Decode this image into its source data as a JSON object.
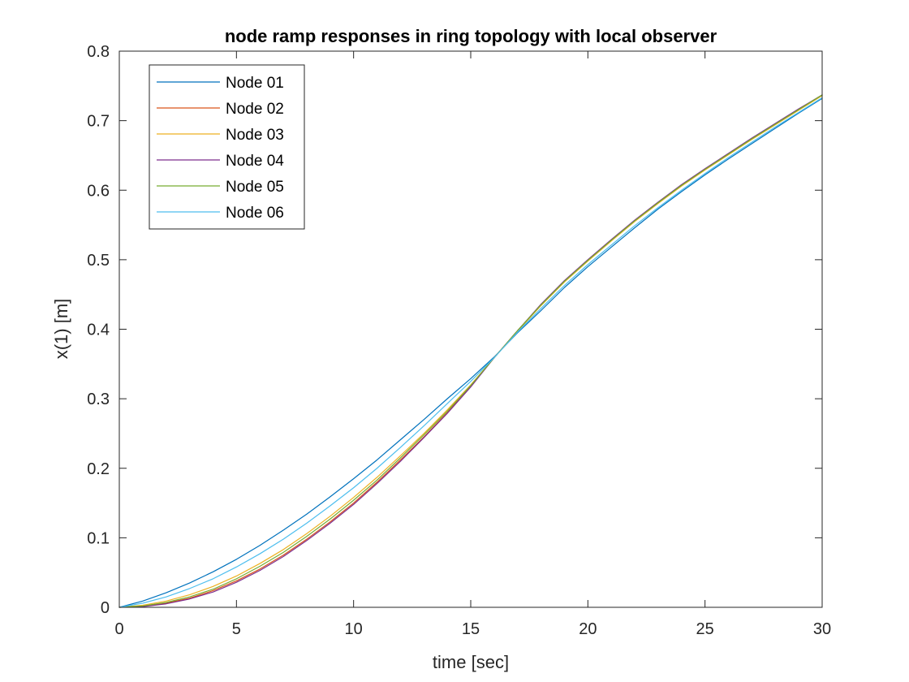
{
  "chart_data": {
    "type": "line",
    "title": "node ramp responses in ring topology with local observer",
    "xlabel": "time [sec]",
    "ylabel": "x(1) [m]",
    "xlim": [
      0,
      30
    ],
    "ylim": [
      0,
      0.8
    ],
    "xticks": [
      0,
      5,
      10,
      15,
      20,
      25,
      30
    ],
    "xtick_labels": [
      "0",
      "5",
      "10",
      "15",
      "20",
      "25",
      "30"
    ],
    "yticks": [
      0,
      0.1,
      0.2,
      0.3,
      0.4,
      0.5,
      0.6,
      0.7,
      0.8
    ],
    "ytick_labels": [
      "0",
      "0.1",
      "0.2",
      "0.3",
      "0.4",
      "0.5",
      "0.6",
      "0.7",
      "0.8"
    ],
    "grid": false,
    "legend_position": "top-left",
    "x": [
      0,
      1,
      2,
      3,
      4,
      5,
      6,
      7,
      8,
      9,
      10,
      11,
      12,
      13,
      14,
      15,
      16,
      17,
      18,
      19,
      20,
      21,
      22,
      23,
      24,
      25,
      26,
      27,
      28,
      29,
      30
    ],
    "series": [
      {
        "name": "Node 01",
        "color": "#0072BD",
        "values": [
          0,
          0.009,
          0.021,
          0.035,
          0.051,
          0.069,
          0.089,
          0.111,
          0.134,
          0.159,
          0.185,
          0.212,
          0.241,
          0.27,
          0.3,
          0.329,
          0.36,
          0.395,
          0.427,
          0.46,
          0.49,
          0.518,
          0.546,
          0.573,
          0.598,
          0.622,
          0.645,
          0.667,
          0.689,
          0.711,
          0.732
        ]
      },
      {
        "name": "Node 02",
        "color": "#D95319",
        "values": [
          0,
          0.002,
          0.006,
          0.013,
          0.024,
          0.038,
          0.055,
          0.075,
          0.098,
          0.123,
          0.15,
          0.18,
          0.212,
          0.245,
          0.28,
          0.318,
          0.359,
          0.398,
          0.435,
          0.469,
          0.499,
          0.528,
          0.556,
          0.582,
          0.607,
          0.63,
          0.652,
          0.674,
          0.695,
          0.716,
          0.737
        ]
      },
      {
        "name": "Node 03",
        "color": "#EDB120",
        "values": [
          0,
          0.003,
          0.009,
          0.018,
          0.03,
          0.045,
          0.063,
          0.083,
          0.106,
          0.131,
          0.158,
          0.187,
          0.218,
          0.25,
          0.284,
          0.32,
          0.359,
          0.397,
          0.434,
          0.468,
          0.498,
          0.527,
          0.555,
          0.581,
          0.606,
          0.629,
          0.651,
          0.673,
          0.694,
          0.715,
          0.736
        ]
      },
      {
        "name": "Node 04",
        "color": "#7E2F8E",
        "values": [
          0,
          0.001,
          0.005,
          0.012,
          0.022,
          0.036,
          0.053,
          0.073,
          0.096,
          0.121,
          0.148,
          0.178,
          0.21,
          0.244,
          0.279,
          0.317,
          0.359,
          0.398,
          0.436,
          0.47,
          0.5,
          0.529,
          0.557,
          0.583,
          0.608,
          0.631,
          0.653,
          0.675,
          0.696,
          0.717,
          0.737
        ]
      },
      {
        "name": "Node 05",
        "color": "#77AC30",
        "values": [
          0,
          0.002,
          0.007,
          0.015,
          0.026,
          0.041,
          0.059,
          0.079,
          0.102,
          0.127,
          0.154,
          0.183,
          0.215,
          0.248,
          0.282,
          0.319,
          0.359,
          0.398,
          0.435,
          0.469,
          0.499,
          0.528,
          0.556,
          0.582,
          0.607,
          0.63,
          0.652,
          0.674,
          0.695,
          0.716,
          0.737
        ]
      },
      {
        "name": "Node 06",
        "color": "#4DBEEE",
        "values": [
          0,
          0.006,
          0.015,
          0.027,
          0.041,
          0.058,
          0.077,
          0.098,
          0.121,
          0.146,
          0.172,
          0.2,
          0.23,
          0.261,
          0.293,
          0.325,
          0.359,
          0.396,
          0.43,
          0.463,
          0.493,
          0.521,
          0.549,
          0.575,
          0.6,
          0.624,
          0.647,
          0.669,
          0.691,
          0.712,
          0.733
        ]
      }
    ]
  }
}
